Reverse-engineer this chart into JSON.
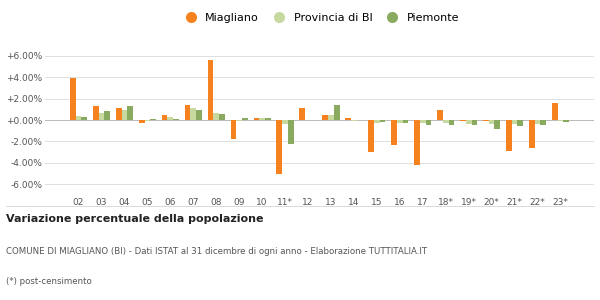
{
  "categories": [
    "02",
    "03",
    "04",
    "05",
    "06",
    "07",
    "08",
    "09",
    "10",
    "11*",
    "12",
    "13",
    "14",
    "15",
    "16",
    "17",
    "18*",
    "19*",
    "20*",
    "21*",
    "22*",
    "23*"
  ],
  "miagliano": [
    3.9,
    1.3,
    1.1,
    -0.3,
    0.5,
    1.4,
    5.6,
    -1.8,
    0.2,
    -5.0,
    1.1,
    0.5,
    0.2,
    -3.0,
    -2.3,
    -4.2,
    0.9,
    -0.1,
    -0.1,
    -2.9,
    -2.6,
    1.6
  ],
  "provincia_bi": [
    0.4,
    0.7,
    0.9,
    -0.1,
    0.3,
    1.1,
    0.7,
    -0.1,
    0.2,
    -0.4,
    0.0,
    0.5,
    -0.1,
    -0.3,
    -0.3,
    -0.3,
    -0.3,
    -0.4,
    -0.4,
    -0.4,
    -0.4,
    -0.1
  ],
  "piemonte": [
    0.3,
    0.8,
    1.3,
    0.1,
    0.1,
    0.9,
    0.6,
    0.2,
    0.2,
    -2.2,
    0.0,
    1.4,
    0.0,
    -0.2,
    -0.3,
    -0.5,
    -0.5,
    -0.5,
    -0.8,
    -0.6,
    -0.5,
    -0.2
  ],
  "color_miagliano": "#f5821e",
  "color_provincia": "#c8d9a0",
  "color_piemonte": "#8aaa60",
  "bg_color": "#ffffff",
  "grid_color": "#e0e0e0",
  "legend_labels": [
    "Miagliano",
    "Provincia di BI",
    "Piemonte"
  ],
  "title": "Variazione percentuale della popolazione",
  "footnote1": "COMUNE DI MIAGLIANO (BI) - Dati ISTAT al 31 dicembre di ogni anno - Elaborazione TUTTITALIA.IT",
  "footnote2": "(*) post-censimento",
  "ylim": [
    -7.0,
    7.0
  ],
  "yticks": [
    -6.0,
    -4.0,
    -2.0,
    0.0,
    2.0,
    4.0,
    6.0
  ]
}
